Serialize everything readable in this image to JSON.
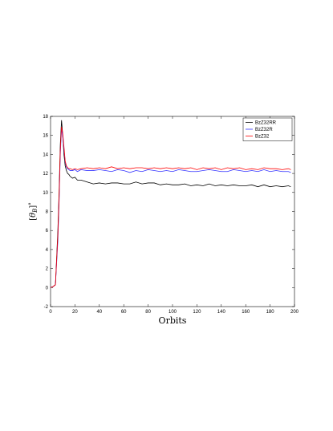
{
  "chart_data": {
    "type": "line",
    "title": "",
    "xlabel": "Orbits",
    "ylabel": "[θ_B]°",
    "xlim": [
      0,
      200
    ],
    "ylim": [
      -2,
      18
    ],
    "xticks": [
      0,
      20,
      40,
      60,
      80,
      100,
      120,
      140,
      160,
      180,
      200
    ],
    "yticks": [
      -2,
      0,
      2,
      4,
      6,
      8,
      10,
      12,
      14,
      16,
      18
    ],
    "grid": false,
    "legend_position": "top-right",
    "x": [
      0,
      2,
      4,
      6,
      7,
      8,
      9,
      10,
      11,
      12,
      13,
      14,
      15,
      16,
      18,
      20,
      22,
      25,
      30,
      35,
      40,
      45,
      50,
      55,
      60,
      65,
      70,
      75,
      80,
      85,
      90,
      95,
      100,
      105,
      110,
      115,
      120,
      125,
      130,
      135,
      140,
      145,
      150,
      155,
      160,
      165,
      170,
      175,
      180,
      185,
      190,
      195,
      197
    ],
    "series": [
      {
        "name": "BzZ32RR",
        "color": "#000000",
        "values": [
          0,
          0.1,
          0.3,
          6,
          10,
          15,
          17.6,
          16,
          14,
          12.8,
          12.3,
          12.0,
          11.9,
          11.7,
          11.5,
          11.6,
          11.3,
          11.3,
          11.1,
          10.9,
          11.0,
          10.9,
          11.0,
          11.0,
          10.9,
          10.9,
          11.1,
          10.9,
          11.0,
          11.0,
          10.8,
          10.9,
          10.8,
          10.8,
          10.9,
          10.7,
          10.8,
          10.7,
          10.9,
          10.7,
          10.8,
          10.7,
          10.8,
          10.7,
          10.7,
          10.8,
          10.6,
          10.8,
          10.6,
          10.7,
          10.6,
          10.7,
          10.6
        ]
      },
      {
        "name": "BzZ32R",
        "color": "#3333ff",
        "values": [
          0,
          0.1,
          0.3,
          5,
          9,
          14,
          16.8,
          15.8,
          14.5,
          13.2,
          12.7,
          12.5,
          12.4,
          12.3,
          12.3,
          12.4,
          12.2,
          12.4,
          12.3,
          12.3,
          12.4,
          12.3,
          12.2,
          12.4,
          12.3,
          12.1,
          12.3,
          12.2,
          12.4,
          12.3,
          12.2,
          12.3,
          12.2,
          12.4,
          12.3,
          12.2,
          12.2,
          12.3,
          12.4,
          12.3,
          12.2,
          12.2,
          12.4,
          12.3,
          12.2,
          12.3,
          12.2,
          12.4,
          12.2,
          12.3,
          12.2,
          12.2,
          12.1
        ]
      },
      {
        "name": "BzZ32",
        "color": "#ff0000",
        "values": [
          0,
          0.1,
          0.3,
          5.5,
          9.5,
          14.5,
          16.9,
          16.2,
          14.8,
          13.3,
          12.8,
          12.6,
          12.5,
          12.5,
          12.4,
          12.5,
          12.4,
          12.5,
          12.6,
          12.5,
          12.6,
          12.5,
          12.7,
          12.5,
          12.6,
          12.5,
          12.6,
          12.6,
          12.5,
          12.6,
          12.5,
          12.6,
          12.5,
          12.6,
          12.5,
          12.6,
          12.4,
          12.6,
          12.5,
          12.6,
          12.4,
          12.6,
          12.5,
          12.6,
          12.4,
          12.5,
          12.4,
          12.6,
          12.5,
          12.5,
          12.4,
          12.5,
          12.4
        ]
      }
    ]
  }
}
